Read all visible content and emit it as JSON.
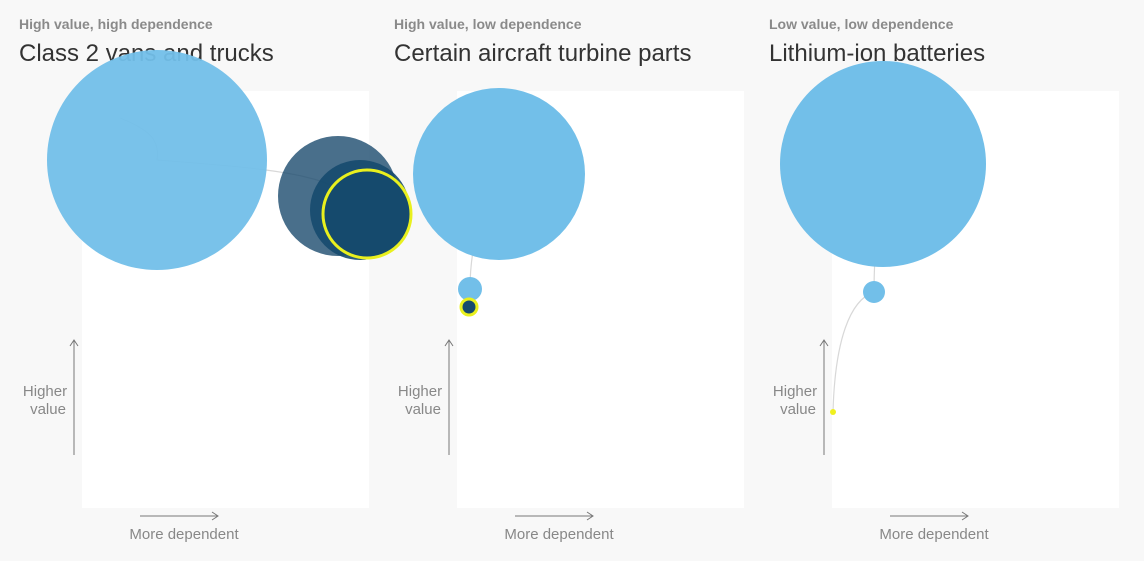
{
  "panels": [
    {
      "subtitle": "High value, high dependence",
      "title": "Class 2 vans and trucks",
      "y_label": [
        "Higher",
        "value"
      ],
      "x_label": "More dependent"
    },
    {
      "subtitle": "High value, low dependence",
      "title": "Certain aircraft turbine parts",
      "y_label": [
        "Higher",
        "value"
      ],
      "x_label": "More dependent"
    },
    {
      "subtitle": "Low value, low dependence",
      "title": "Lithium-ion batteries",
      "y_label": [
        "Higher",
        "value"
      ],
      "x_label": "More dependent"
    }
  ]
}
